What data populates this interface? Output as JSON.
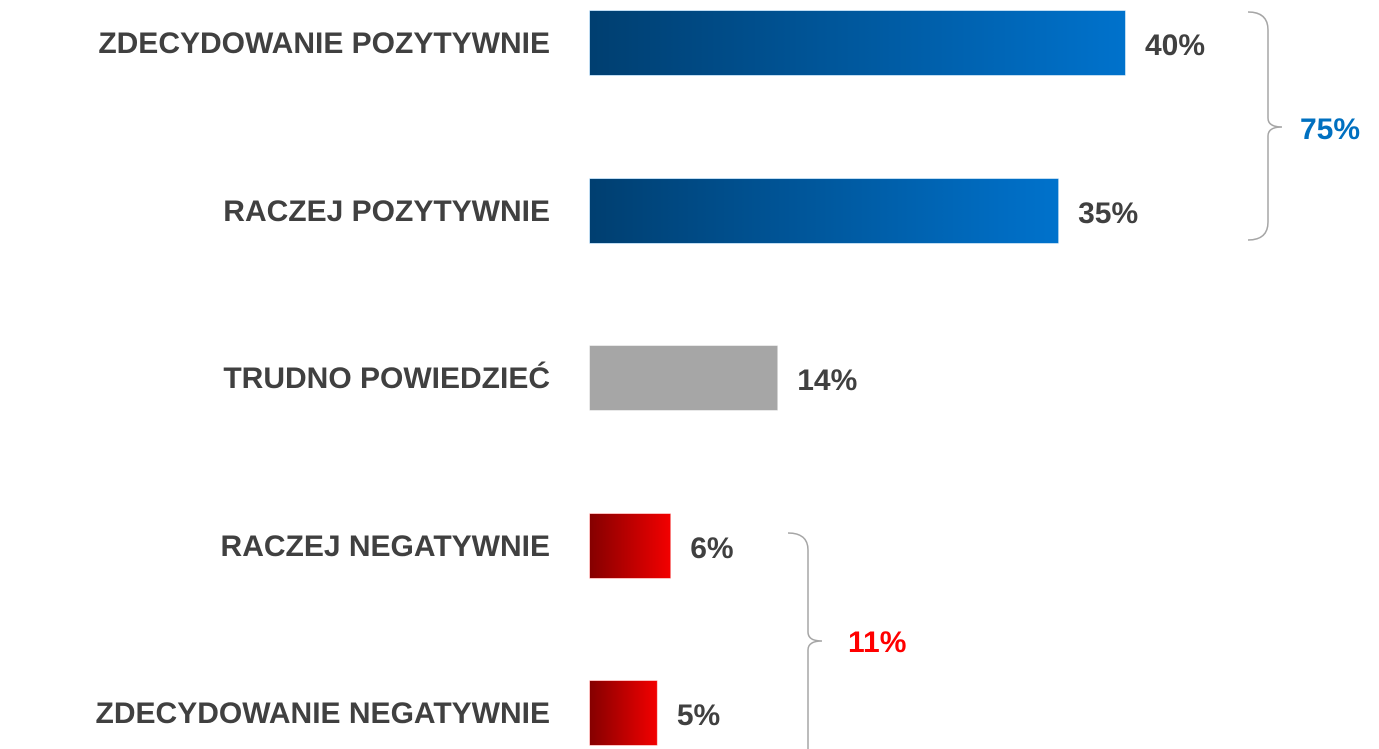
{
  "chart_data": {
    "type": "bar",
    "orientation": "horizontal",
    "categories": [
      "ZDECYDOWANIE POZYTYWNIE",
      "RACZEJ POZYTYWNIE",
      "TRUDNO POWIEDZIEĆ",
      "RACZEJ NEGATYWNIE",
      "ZDECYDOWANIE NEGATYWNIE"
    ],
    "values": [
      40,
      35,
      14,
      6,
      5
    ],
    "value_labels": [
      "40%",
      "35%",
      "14%",
      "6%",
      "5%"
    ],
    "colors": [
      "#0072cc",
      "#0072cc",
      "#a6a6a6",
      "#f20000",
      "#f20000"
    ],
    "annotations": [
      {
        "label": "75%",
        "color": "#0070c0"
      },
      {
        "label": "11%",
        "color": "#ff0000"
      }
    ]
  }
}
